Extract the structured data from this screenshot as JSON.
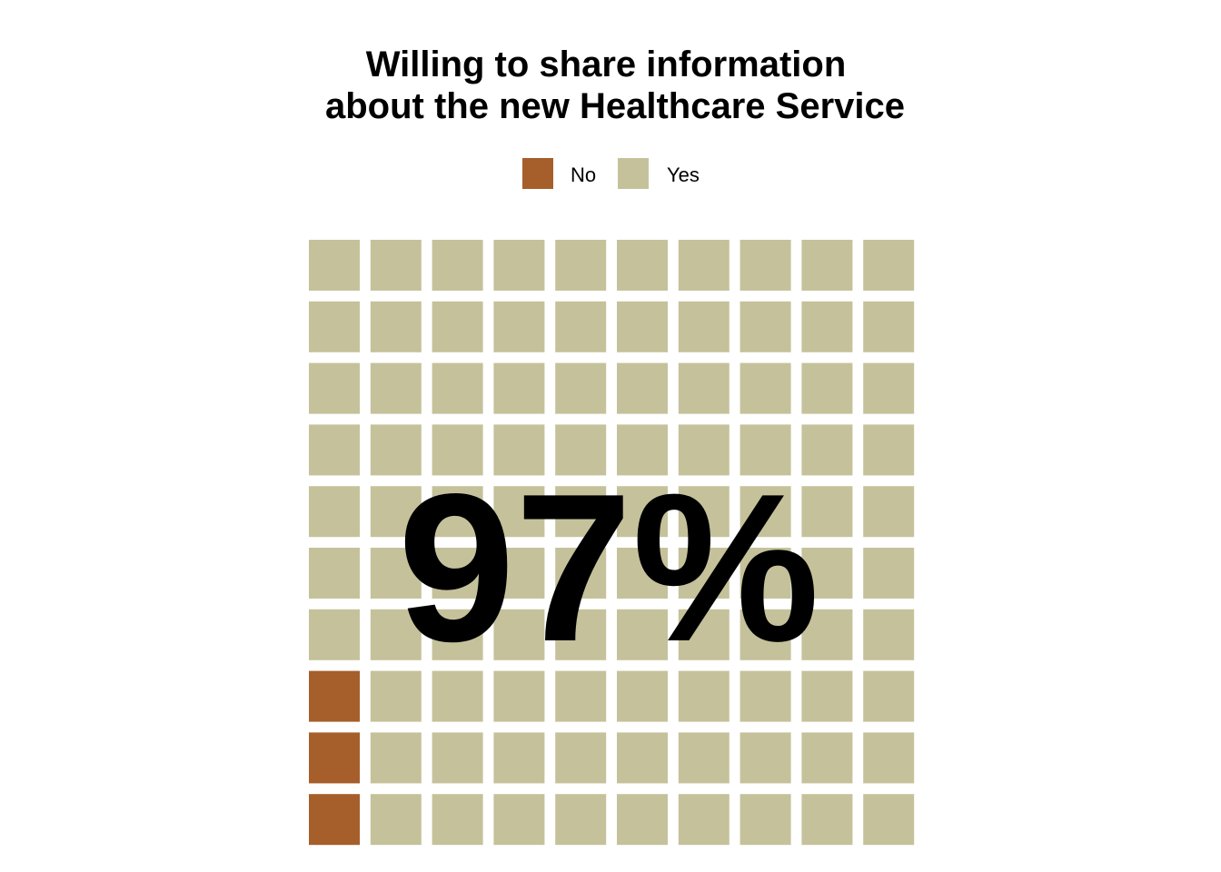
{
  "chart_data": {
    "type": "waffle",
    "title_lines": [
      "Willing to share information",
      "about the new Healthcare Service"
    ],
    "categories": [
      "No",
      "Yes"
    ],
    "values": [
      3,
      97
    ],
    "colors": {
      "No": "#a65e2a",
      "Yes": "#c5c29b"
    },
    "grid": {
      "rows": 10,
      "cols": 10
    },
    "center_label": "97%",
    "legend_position": "top"
  }
}
